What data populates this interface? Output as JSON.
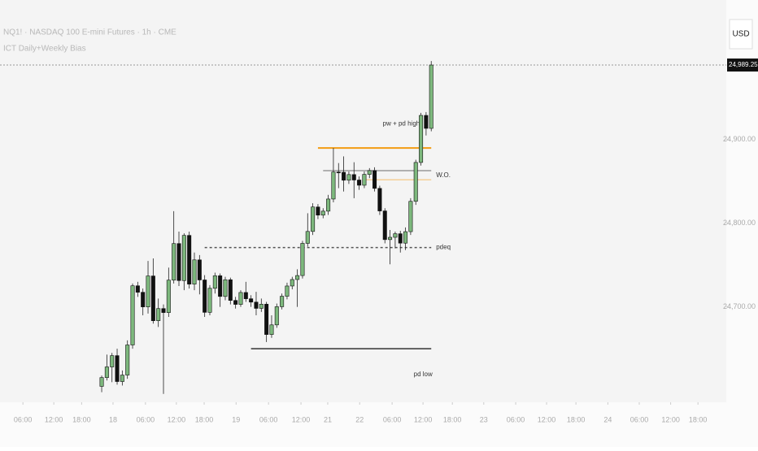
{
  "chart_data": {
    "type": "candlestick",
    "title": "NQ1! · NASDAQ 100 E-mini Futures · 1h · CME",
    "subtitle": "ICT Daily+Weekly Bias",
    "currency": "USD",
    "price_label": "24,989.25",
    "up_color": "#7db87d",
    "down_color": "#111111",
    "open": [
      24605,
      24615.5,
      24628.25,
      24641.75,
      24610.75,
      24618.5,
      24654.5,
      24725.25,
      24717.5,
      24700,
      24737,
      24683.5,
      24698,
      24693.25,
      24732,
      24775.75,
      24731.5,
      24785.5,
      24727.25,
      24756.25,
      24732.25,
      24693.5,
      24722.25,
      24737.25,
      24712.5,
      24732.5,
      24707.75,
      24703,
      24717.25,
      24709.75,
      24705.75,
      24698.25,
      24703.25,
      24667,
      24678.5,
      24700.25,
      24712.75,
      24725,
      24732.75,
      24737.5,
      24776,
      24790.25,
      24819.5,
      24809.75,
      24814.5,
      24829,
      24861.25,
      24861,
      24851.5,
      24858.25,
      24851.75,
      24845.5,
      24858.5,
      24863,
      24841.75,
      24814.75,
      24780.5,
      24783.25,
      24787.5,
      24776.25,
      24790,
      24826.25,
      24872.75,
      24929,
      24913.5
    ],
    "high": [
      24618,
      24643,
      24645,
      24650,
      24624,
      24660,
      24728,
      24730,
      24722,
      24755,
      24758,
      24710,
      24703,
      24747,
      24814.5,
      24790,
      24788,
      24790,
      24765,
      24762,
      24738,
      24726,
      24741,
      24740,
      24736,
      24735,
      24712,
      24720,
      24730,
      24714,
      24718,
      24710,
      24706,
      24690,
      24704,
      24716,
      24729,
      24736,
      24745,
      24779,
      24812,
      24824,
      24823,
      24818,
      24834,
      24890,
      24872,
      24880,
      24862,
      24873,
      24856,
      24862,
      24866,
      24867,
      24845,
      24818,
      24792,
      24790,
      24791,
      24795,
      24830,
      24876,
      24932,
      24933,
      24994
    ],
    "low": [
      24598,
      24612,
      24610,
      24607,
      24606,
      24614,
      24650,
      24712,
      24690,
      24692,
      24680,
      24676,
      24596,
      24688,
      24728,
      24725,
      24720,
      24722,
      24720,
      24715,
      24688,
      24690,
      24716,
      24700,
      24708,
      24703,
      24698,
      24700,
      24706,
      24700,
      24690,
      24694,
      24658,
      24663,
      24675,
      24697,
      24709,
      24721,
      24700,
      24734,
      24772,
      24786,
      24805,
      24806,
      24810,
      24825,
      24842,
      24838,
      24847,
      24830,
      24840,
      24842,
      24854,
      24838,
      24810,
      24776,
      24751,
      24770,
      24765,
      24768,
      24786,
      24822,
      24869,
      24905,
      24910
    ],
    "close": [
      24615.5,
      24628.25,
      24641.75,
      24610.75,
      24618.5,
      24654.5,
      24725.25,
      24717.5,
      24700,
      24737,
      24683.5,
      24698,
      24693.25,
      24732,
      24775.75,
      24731.5,
      24785.5,
      24727.25,
      24756.25,
      24732.25,
      24693.5,
      24722.25,
      24737.25,
      24712.5,
      24732.5,
      24707.75,
      24703,
      24717.25,
      24709.75,
      24705.75,
      24698.25,
      24703.25,
      24667,
      24678.5,
      24700.25,
      24712.75,
      24725,
      24732.75,
      24737.5,
      24776,
      24790.25,
      24819.5,
      24809.75,
      24814.5,
      24829,
      24861.25,
      24861,
      24851.5,
      24858.25,
      24851.75,
      24845.5,
      24858.5,
      24863,
      24841.75,
      24814.75,
      24780.5,
      24783.25,
      24787.5,
      24776.25,
      24790,
      24826.25,
      24872.75,
      24929,
      24913.5,
      24989.25
    ],
    "levels": [
      {
        "label": "pw + pd high",
        "value": 24890,
        "from": 42,
        "color": "#f39c12"
      },
      {
        "label": "W.O.",
        "value": 24863,
        "from": 43,
        "color": "#9a9a9a"
      },
      {
        "value": 24852,
        "from": 51,
        "color": "#f5cf97"
      },
      {
        "label": "pdeq",
        "value": 24771,
        "from": 20,
        "color": "#555555",
        "dashed": true
      },
      {
        "label": "pd low",
        "value": 24650,
        "from": 29,
        "color": "#333333"
      }
    ],
    "ylim": [
      24586,
      25067
    ],
    "yticks": [
      {
        "value": 24700,
        "label": "24,700.00"
      },
      {
        "value": 24800,
        "label": "24,800.00"
      },
      {
        "value": 24900,
        "label": "24,900.00"
      }
    ],
    "xlim": [
      -19.75,
      121.3
    ],
    "xticks": [
      {
        "value": -15.3,
        "label": "06:00"
      },
      {
        "value": -9.3,
        "label": "12:00"
      },
      {
        "value": -3.9,
        "label": "18:00"
      },
      {
        "value": 2.2,
        "label": "18"
      },
      {
        "value": 8.5,
        "label": "06:00"
      },
      {
        "value": 14.5,
        "label": "12:00"
      },
      {
        "value": 19.9,
        "label": "18:00"
      },
      {
        "value": 26.1,
        "label": "19"
      },
      {
        "value": 32.4,
        "label": "06:00"
      },
      {
        "value": 38.7,
        "label": "12:00"
      },
      {
        "value": 43.9,
        "label": "21"
      },
      {
        "value": 50.1,
        "label": "22"
      },
      {
        "value": 56.4,
        "label": "06:00"
      },
      {
        "value": 62.4,
        "label": "12:00"
      },
      {
        "value": 68.1,
        "label": "18:00"
      },
      {
        "value": 74.2,
        "label": "23"
      },
      {
        "value": 80.4,
        "label": "06:00"
      },
      {
        "value": 86.4,
        "label": "12:00"
      },
      {
        "value": 92.1,
        "label": "18:00"
      },
      {
        "value": 98.3,
        "label": "24"
      },
      {
        "value": 104.4,
        "label": "06:00"
      },
      {
        "value": 110.5,
        "label": "12:00"
      },
      {
        "value": 115.8,
        "label": "18:00"
      }
    ]
  }
}
